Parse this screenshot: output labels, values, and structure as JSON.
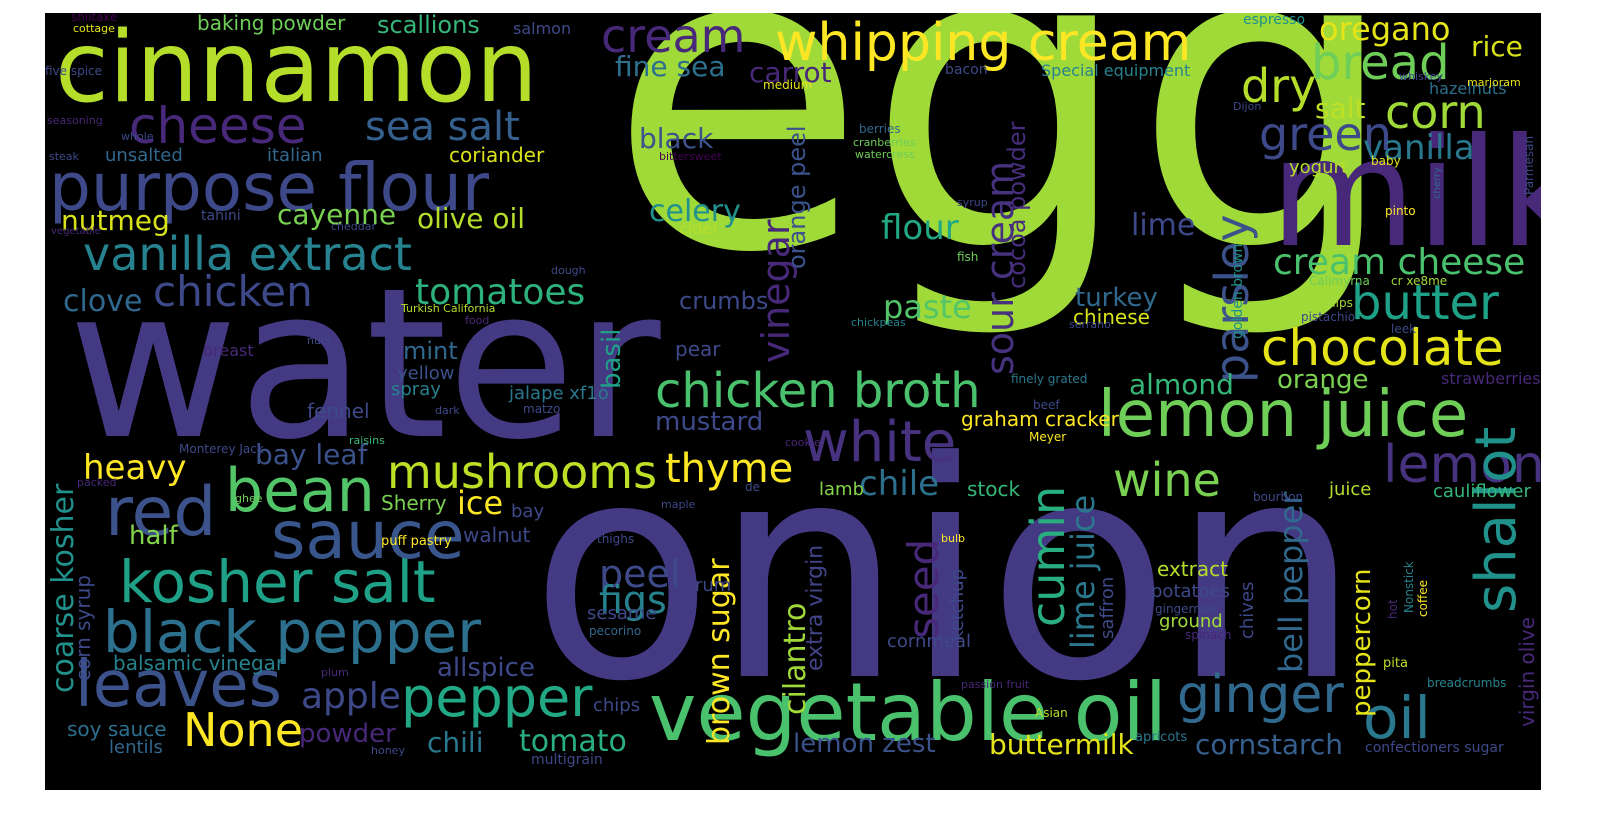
{
  "palette": [
    "#440154",
    "#482878",
    "#3e4989",
    "#31688e",
    "#26828e",
    "#1f9e89",
    "#35b779",
    "#6ece58",
    "#b5de2b",
    "#fde725"
  ],
  "words": [
    {
      "text": "egg",
      "color": "#a0da39"
    },
    {
      "text": "water",
      "color": "#443983"
    },
    {
      "text": "onion",
      "color": "#443983"
    },
    {
      "text": "cinnamon",
      "color": "#b5de2b"
    },
    {
      "text": "milk",
      "color": "#482878"
    },
    {
      "text": "purpose flour",
      "color": "#3e4989"
    },
    {
      "text": "vegetable oil",
      "color": "#4ac16d"
    },
    {
      "text": "lemon juice",
      "color": "#6ece58"
    },
    {
      "text": "whipping cream",
      "color": "#fde725"
    },
    {
      "text": "kosher salt",
      "color": "#1fa187"
    },
    {
      "text": "black pepper",
      "color": "#2d708e"
    },
    {
      "text": "vanilla extract",
      "color": "#26828e"
    },
    {
      "text": "leaves",
      "color": "#3b528b"
    },
    {
      "text": "red",
      "color": "#3b528b"
    },
    {
      "text": "sauce",
      "color": "#39568c"
    },
    {
      "text": "chicken broth",
      "color": "#4ac16d"
    },
    {
      "text": "mushrooms",
      "color": "#bddf26"
    },
    {
      "text": "cheese",
      "color": "#482878"
    },
    {
      "text": "cream",
      "color": "#482878"
    },
    {
      "text": "bread",
      "color": "#6ece58"
    },
    {
      "text": "chocolate",
      "color": "#e5e419"
    },
    {
      "text": "butter",
      "color": "#1fa187"
    },
    {
      "text": "white",
      "color": "#46327e"
    },
    {
      "text": "lemon",
      "color": "#46327e"
    },
    {
      "text": "bean",
      "color": "#52c569"
    },
    {
      "text": "pepper",
      "color": "#22a884"
    },
    {
      "text": "ginger",
      "color": "#31688e"
    },
    {
      "text": "oil",
      "color": "#2a788e"
    },
    {
      "text": "shallot",
      "color": "#21918c"
    },
    {
      "text": "sea salt",
      "color": "#355f8d"
    },
    {
      "text": "chicken",
      "color": "#3e4989"
    },
    {
      "text": "green",
      "color": "#3e4989"
    },
    {
      "text": "dry",
      "color": "#b5de2b"
    },
    {
      "text": "corn",
      "color": "#a0da39"
    },
    {
      "text": "thyme",
      "color": "#fde725"
    },
    {
      "text": "wine",
      "color": "#7ad151"
    },
    {
      "text": "None",
      "color": "#fde725"
    },
    {
      "text": "cumin",
      "color": "#29af7f"
    },
    {
      "text": "parsley",
      "color": "#3b528b"
    },
    {
      "text": "cream cheese",
      "color": "#4ac16d"
    },
    {
      "text": "tomatoes",
      "color": "#2db27d"
    },
    {
      "text": "seed",
      "color": "#482878"
    },
    {
      "text": "sour cream",
      "color": "#46327e"
    },
    {
      "text": "heavy",
      "color": "#fde725"
    },
    {
      "text": "oregano",
      "color": "#e5e419"
    },
    {
      "text": "vanilla",
      "color": "#2a788e"
    },
    {
      "text": "paste",
      "color": "#52c569"
    },
    {
      "text": "flour",
      "color": "#22a884"
    },
    {
      "text": "celery",
      "color": "#21918c"
    },
    {
      "text": "vinegar",
      "color": "#482878"
    },
    {
      "text": "bay leaf",
      "color": "#3b528b"
    },
    {
      "text": "chile",
      "color": "#2d708e"
    },
    {
      "text": "fine sea",
      "color": "#2d708e"
    },
    {
      "text": "carrot",
      "color": "#482878"
    },
    {
      "text": "rice",
      "color": "#d8e219"
    },
    {
      "text": "salt",
      "color": "#bddf26"
    },
    {
      "text": "coarse kosher",
      "color": "#21918c"
    },
    {
      "text": "lime juice",
      "color": "#2a788e"
    },
    {
      "text": "bell pepper",
      "color": "#31688e"
    },
    {
      "text": "peppercorn",
      "color": "#e5e419"
    },
    {
      "text": "olive oil",
      "color": "#b5de2b"
    },
    {
      "text": "nutmeg",
      "color": "#d8e219"
    },
    {
      "text": "cayenne",
      "color": "#7ad151"
    },
    {
      "text": "black",
      "color": "#3b528b"
    },
    {
      "text": "cocoa powder",
      "color": "#472d7b"
    },
    {
      "text": "orange peel",
      "color": "#3b528b"
    },
    {
      "text": "clove",
      "color": "#31688e"
    },
    {
      "text": "mustard",
      "color": "#3e4989"
    },
    {
      "text": "almond",
      "color": "#35b779"
    },
    {
      "text": "orange",
      "color": "#7ad151"
    },
    {
      "text": "turkey",
      "color": "#31688e"
    },
    {
      "text": "chinese",
      "color": "#d8e219"
    },
    {
      "text": "lime",
      "color": "#3e4989"
    },
    {
      "text": "ice",
      "color": "#fde725"
    },
    {
      "text": "half",
      "color": "#84d44b"
    },
    {
      "text": "basil",
      "color": "#1fa187"
    },
    {
      "text": "apple",
      "color": "#3e4989"
    },
    {
      "text": "peel",
      "color": "#3e4989"
    },
    {
      "text": "figs",
      "color": "#26828e"
    },
    {
      "text": "brown sugar",
      "color": "#fde725"
    },
    {
      "text": "cilantro",
      "color": "#a0da39"
    },
    {
      "text": "extra virgin",
      "color": "#414487"
    },
    {
      "text": "allspice",
      "color": "#3e4989"
    },
    {
      "text": "balsamic vinegar",
      "color": "#26828e"
    },
    {
      "text": "tomato",
      "color": "#29af7f"
    },
    {
      "text": "chili",
      "color": "#2a788e"
    },
    {
      "text": "lemon zest",
      "color": "#3b528b"
    },
    {
      "text": "buttermilk",
      "color": "#e5e419"
    },
    {
      "text": "cornstarch",
      "color": "#355f8d"
    },
    {
      "text": "confectioners sugar",
      "color": "#3e4989"
    },
    {
      "text": "virgin olive",
      "color": "#482878"
    },
    {
      "text": "powder",
      "color": "#482878"
    },
    {
      "text": "soy sauce",
      "color": "#2d708e"
    },
    {
      "text": "lentils",
      "color": "#31688e"
    },
    {
      "text": "chips",
      "color": "#3e4989"
    },
    {
      "text": "multigrain",
      "color": "#3e4989"
    },
    {
      "text": "apricots",
      "color": "#2a788e"
    },
    {
      "text": "cauliflower",
      "color": "#35b779"
    },
    {
      "text": "juice",
      "color": "#b5de2b"
    },
    {
      "text": "bourbon",
      "color": "#3e4989"
    },
    {
      "text": "strawberries",
      "color": "#482878"
    },
    {
      "text": "crumbs",
      "color": "#3e4989"
    },
    {
      "text": "mint",
      "color": "#31688e"
    },
    {
      "text": "yellow",
      "color": "#3b528b"
    },
    {
      "text": "spray",
      "color": "#26828e"
    },
    {
      "text": "jalape xf1o",
      "color": "#2a788e"
    },
    {
      "text": "matzo",
      "color": "#3e4989"
    },
    {
      "text": "fennel",
      "color": "#3e4989"
    },
    {
      "text": "pear",
      "color": "#3e4989"
    },
    {
      "text": "graham cracker",
      "color": "#fde725"
    },
    {
      "text": "finely grated",
      "color": "#2a788e"
    },
    {
      "text": "beef",
      "color": "#3e4989"
    },
    {
      "text": "Meyer",
      "color": "#fde725"
    },
    {
      "text": "stock",
      "color": "#35b779"
    },
    {
      "text": "lamb",
      "color": "#84d44b"
    },
    {
      "text": "Sherry",
      "color": "#7ad151"
    },
    {
      "text": "bay",
      "color": "#3e4989"
    },
    {
      "text": "walnut",
      "color": "#3e4989"
    },
    {
      "text": "puff pastry",
      "color": "#fde725"
    },
    {
      "text": "thighs",
      "color": "#3e4989"
    },
    {
      "text": "rum",
      "color": "#3e4989"
    },
    {
      "text": "sesame",
      "color": "#3e4989"
    },
    {
      "text": "pecorino",
      "color": "#31688e"
    },
    {
      "text": "ketchup",
      "color": "#3e4989"
    },
    {
      "text": "saffron",
      "color": "#3e4989"
    },
    {
      "text": "cornmeal",
      "color": "#3e4989"
    },
    {
      "text": "extract",
      "color": "#b5de2b"
    },
    {
      "text": "potatoes",
      "color": "#3e4989"
    },
    {
      "text": "gingerroot",
      "color": "#3e4989"
    },
    {
      "text": "spinach",
      "color": "#482878"
    },
    {
      "text": "ground",
      "color": "#a0da39"
    },
    {
      "text": "chives",
      "color": "#3e4989"
    },
    {
      "text": "hot",
      "color": "#482878"
    },
    {
      "text": "Nonstick",
      "color": "#26828e"
    },
    {
      "text": "coffee",
      "color": "#fde725"
    },
    {
      "text": "pita",
      "color": "#bddf26"
    },
    {
      "text": "breadcrumbs",
      "color": "#26828e"
    },
    {
      "text": "leek",
      "color": "#3e4989"
    },
    {
      "text": "pistachio",
      "color": "#3e4989"
    },
    {
      "text": "turnips",
      "color": "#a0da39"
    },
    {
      "text": "Calimyrna",
      "color": "#6ece58"
    },
    {
      "text": "cr xe8me",
      "color": "#a0da39"
    },
    {
      "text": "pinto",
      "color": "#fde725"
    },
    {
      "text": "golden brown",
      "color": "#21918c"
    },
    {
      "text": "yogurt",
      "color": "#b5de2b"
    },
    {
      "text": "baby",
      "color": "#e5e419"
    },
    {
      "text": "cherry",
      "color": "#31688e"
    },
    {
      "text": "Parmesan",
      "color": "#3e4989"
    },
    {
      "text": "hazelnuts",
      "color": "#2d708e"
    },
    {
      "text": "whiskey",
      "color": "#3e4989"
    },
    {
      "text": "marjoram",
      "color": "#e5e419"
    },
    {
      "text": "espresso",
      "color": "#21918c"
    },
    {
      "text": "Dijon",
      "color": "#3e4989"
    },
    {
      "text": "medium",
      "color": "#e5e419"
    },
    {
      "text": "bacon",
      "color": "#3e4989"
    },
    {
      "text": "Special equipment",
      "color": "#26828e"
    },
    {
      "text": "berries",
      "color": "#31688e"
    },
    {
      "text": "cranberries",
      "color": "#6ece58"
    },
    {
      "text": "watercress",
      "color": "#6ece58"
    },
    {
      "text": "syrup",
      "color": "#3e4989"
    },
    {
      "text": "fish",
      "color": "#6ece58"
    },
    {
      "text": "cider",
      "color": "#b5de2b"
    },
    {
      "text": "cheddar",
      "color": "#3e4989"
    },
    {
      "text": "tahini",
      "color": "#3e4989"
    },
    {
      "text": "italian",
      "color": "#31688e"
    },
    {
      "text": "coriander",
      "color": "#d8e219"
    },
    {
      "text": "unsalted",
      "color": "#31688e"
    },
    {
      "text": "steak",
      "color": "#3e4989"
    },
    {
      "text": "whole",
      "color": "#3e4989"
    },
    {
      "text": "five spice",
      "color": "#3e4989"
    },
    {
      "text": "cottage",
      "color": "#e5e419"
    },
    {
      "text": "shiitake",
      "color": "#440154"
    },
    {
      "text": "seasoning",
      "color": "#482878"
    },
    {
      "text": "vegetable",
      "color": "#482878"
    },
    {
      "text": "baking powder",
      "color": "#6ece58"
    },
    {
      "text": "scallions",
      "color": "#35b779"
    },
    {
      "text": "salmon",
      "color": "#3e4989"
    },
    {
      "text": "bittersweet",
      "color": "#440154"
    },
    {
      "text": "dough",
      "color": "#3e4989"
    },
    {
      "text": "Turkish California",
      "color": "#b5de2b"
    },
    {
      "text": "food",
      "color": "#482878"
    },
    {
      "text": "nuts",
      "color": "#3e4989"
    },
    {
      "text": "breast",
      "color": "#482878"
    },
    {
      "text": "chickpeas",
      "color": "#26828e"
    },
    {
      "text": "serrano",
      "color": "#3e4989"
    },
    {
      "text": "dark",
      "color": "#3e4989"
    },
    {
      "text": "raisins",
      "color": "#35b779"
    },
    {
      "text": "Monterey Jack",
      "color": "#3e4989"
    },
    {
      "text": "cookie",
      "color": "#482878"
    },
    {
      "text": "packed",
      "color": "#482878"
    },
    {
      "text": "ghee",
      "color": "#6ece58"
    },
    {
      "text": "maple",
      "color": "#3e4989"
    },
    {
      "text": "de",
      "color": "#3e4989"
    },
    {
      "text": "bulb",
      "color": "#fde725"
    },
    {
      "text": "passion fruit",
      "color": "#482878"
    },
    {
      "text": "plum",
      "color": "#482878"
    },
    {
      "text": "honey",
      "color": "#3e4989"
    },
    {
      "text": "Asian",
      "color": "#b5de2b"
    },
    {
      "text": "corn syrup",
      "color": "#3e4989"
    }
  ]
}
